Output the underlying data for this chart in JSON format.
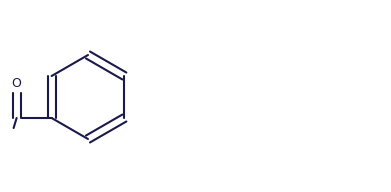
{
  "bg_color": "#ffffff",
  "line_color": "#1a1a4a",
  "line_width": 1.5,
  "figsize": [
    3.91,
    1.92
  ],
  "dpi": 100
}
